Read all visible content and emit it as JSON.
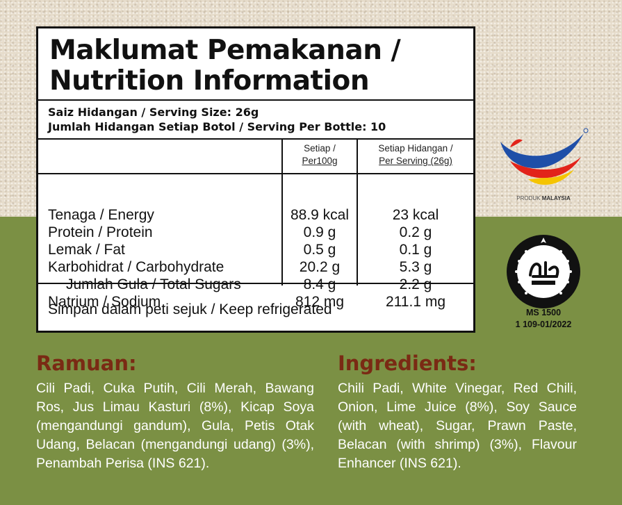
{
  "panel": {
    "title_line1": "Maklumat Pemakanan /",
    "title_line2": "Nutrition Information",
    "serving_size": "Saiz Hidangan / Serving Size: 26g",
    "servings_per_bottle": "Jumlah Hidangan Setiap Botol  / Serving Per Bottle: 10",
    "col1_line1": "Setiap /",
    "col1_line2": "Per100g",
    "col2_line1": "Setiap Hidangan /",
    "col2_line2": "Per Serving (26g)",
    "rows": [
      {
        "label": "Tenaga / Energy",
        "per100g": "88.9 kcal",
        "per_serving": "23 kcal"
      },
      {
        "label": "Protein / Protein",
        "per100g": "0.9 g",
        "per_serving": "0.2 g"
      },
      {
        "label": "Lemak / Fat",
        "per100g": "0.5 g",
        "per_serving": "0.1 g"
      },
      {
        "label": "Karbohidrat / Carbohydrate",
        "per100g": "20.2 g",
        "per_serving": "5.3 g"
      },
      {
        "label": "Jumlah Gula / Total Sugars",
        "per100g": "8.4 g",
        "per_serving": "2.2 g"
      },
      {
        "label": "Natrium / Sodium",
        "per100g": "812 mg",
        "per_serving": "211.1 mg"
      }
    ],
    "storage": "Simpan dalam peti sejuk / Keep refrigerated"
  },
  "logos": {
    "produk_prefix": "PRODUK ",
    "produk_country": "MALAYSIA",
    "ms_standard": "MS 1500",
    "cert_number": "1 109-01/2022",
    "colors": {
      "blue": "#1f4fa8",
      "red": "#e2231a",
      "yellow": "#f5c400"
    }
  },
  "ingredients": {
    "malay_title": "Ramuan:",
    "malay_text": "Cili Padi, Cuka Putih, Cili Merah, Bawang Ros, Jus Limau Kasturi (8%), Kicap Soya (mengandungi gandum), Gula, Petis Otak Udang, Belacan (mengandungi udang) (3%), Penambah Perisa (INS 621).",
    "english_title": "Ingredients:",
    "english_text": "Chili Padi, White Vinegar, Red Chili, Onion, Lime Juice (8%), Soy Sauce (with wheat), Sugar, Prawn Paste, Belacan (with shrimp) (3%), Flavour Enhancer (INS 621)."
  },
  "theme": {
    "green": "#7b9044",
    "ingredient_title_color": "#7a2a14"
  }
}
